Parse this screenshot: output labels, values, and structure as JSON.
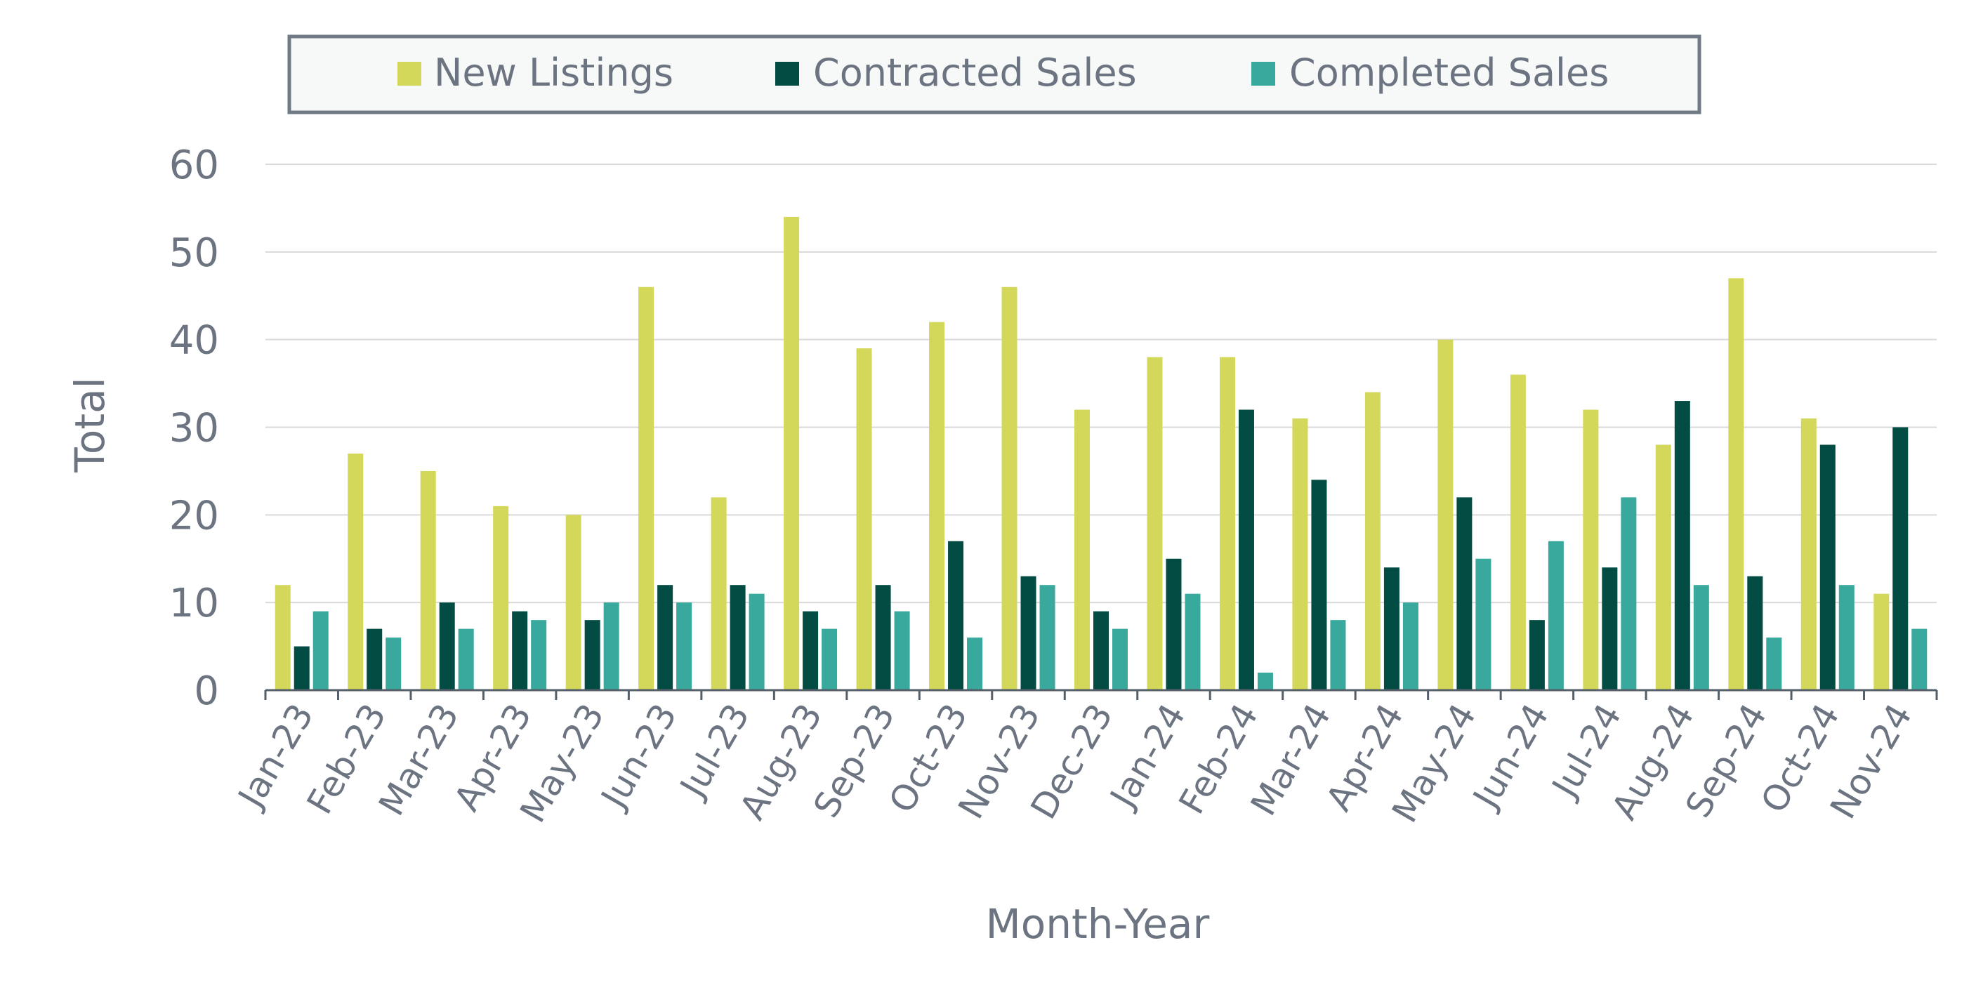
{
  "chart_data": {
    "type": "bar",
    "xlabel": "Month-Year",
    "ylabel": "Total",
    "ylim": [
      0,
      60
    ],
    "yticks": [
      0,
      10,
      20,
      30,
      40,
      50,
      60
    ],
    "grid": "horizontal",
    "legend_position": "top-center",
    "categories": [
      "Jan-23",
      "Feb-23",
      "Mar-23",
      "Apr-23",
      "May-23",
      "Jun-23",
      "Jul-23",
      "Aug-23",
      "Sep-23",
      "Oct-23",
      "Nov-23",
      "Dec-23",
      "Jan-24",
      "Feb-24",
      "Mar-24",
      "Apr-24",
      "May-24",
      "Jun-24",
      "Jul-24",
      "Aug-24",
      "Sep-24",
      "Oct-24",
      "Nov-24"
    ],
    "series": [
      {
        "name": "New Listings",
        "color": "#d4d85a",
        "values": [
          12,
          27,
          25,
          21,
          20,
          46,
          22,
          54,
          39,
          42,
          46,
          32,
          38,
          38,
          31,
          34,
          40,
          36,
          32,
          28,
          47,
          31,
          11
        ]
      },
      {
        "name": "Contracted Sales",
        "color": "#034c43",
        "values": [
          5,
          7,
          10,
          9,
          8,
          12,
          12,
          9,
          12,
          17,
          13,
          9,
          15,
          32,
          24,
          14,
          22,
          8,
          14,
          33,
          13,
          28,
          30
        ]
      },
      {
        "name": "Completed Sales",
        "color": "#38a99c",
        "values": [
          9,
          6,
          7,
          8,
          10,
          10,
          11,
          7,
          9,
          6,
          12,
          7,
          11,
          2,
          8,
          10,
          15,
          17,
          22,
          12,
          6,
          12,
          7
        ]
      }
    ]
  }
}
